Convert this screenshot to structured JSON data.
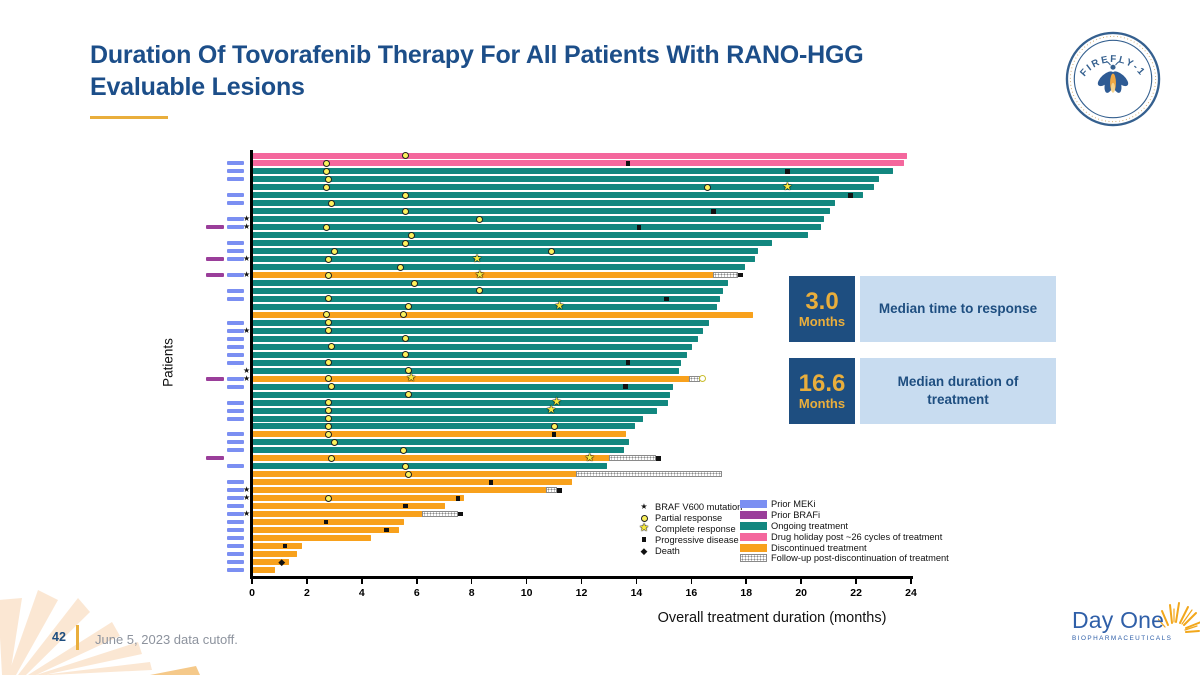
{
  "slide": {
    "title": "Duration Of Tovorafenib Therapy For All Patients With RANO-HGG Evaluable Lesions",
    "page_number": "42",
    "footnote": "June 5, 2023 data cutoff."
  },
  "logos": {
    "firefly": "FIREFLY-1",
    "dayone": "Day One",
    "dayone_sub": "BIOPHARMACEUTICALS"
  },
  "stats": [
    {
      "value": "3.0",
      "unit": "Months",
      "label": "Median time to response"
    },
    {
      "value": "16.6",
      "unit": "Months",
      "label": "Median duration of treatment"
    }
  ],
  "chart_data": {
    "type": "bar",
    "subtype": "swimmer-plot",
    "xlabel": "Overall treatment duration (months)",
    "ylabel": "Patients",
    "xlim": [
      0,
      24
    ],
    "xticks": [
      0,
      2,
      4,
      6,
      8,
      10,
      12,
      14,
      16,
      18,
      20,
      22,
      24
    ],
    "colors": {
      "teal": "#12877F",
      "pink": "#F4679D",
      "orange": "#F8A11C",
      "mek": "#7B8FF2",
      "braf": "#9A3E9A"
    },
    "legend_symbols": [
      {
        "icon": "braf-star",
        "label": "BRAF V600 mutation"
      },
      {
        "icon": "pr",
        "label": "Partial response"
      },
      {
        "icon": "cr",
        "label": "Complete response"
      },
      {
        "icon": "pd",
        "label": "Progressive disease"
      },
      {
        "icon": "death",
        "label": "Death"
      }
    ],
    "legend_bars": [
      {
        "key": "mek",
        "label": "Prior MEKi"
      },
      {
        "key": "braf",
        "label": "Prior BRAFi"
      },
      {
        "key": "teal",
        "label": "Ongoing treatment"
      },
      {
        "key": "pink",
        "label": "Drug holiday post ~26 cycles of treatment"
      },
      {
        "key": "orange",
        "label": "Discontinued treatment"
      },
      {
        "key": "hatch",
        "label": "Follow-up post-discontinuation of treatment"
      }
    ],
    "rows": [
      {
        "len": 23.8,
        "color": "pink",
        "markers": [
          [
            "pr",
            5.6
          ]
        ],
        "pre": []
      },
      {
        "len": 23.7,
        "color": "pink",
        "markers": [
          [
            "pr",
            2.7
          ],
          [
            "pd",
            13.7
          ]
        ],
        "pre": [
          "mek"
        ]
      },
      {
        "len": 23.3,
        "color": "teal",
        "markers": [
          [
            "pr",
            2.7
          ],
          [
            "pd",
            19.5
          ]
        ],
        "pre": [
          "mek"
        ]
      },
      {
        "len": 22.8,
        "color": "teal",
        "markers": [
          [
            "pr",
            2.8
          ]
        ],
        "pre": [
          "mek"
        ]
      },
      {
        "len": 22.6,
        "color": "teal",
        "markers": [
          [
            "pr",
            2.7
          ],
          [
            "pr",
            16.6
          ],
          [
            "cr",
            19.5
          ]
        ],
        "pre": []
      },
      {
        "len": 22.2,
        "color": "teal",
        "markers": [
          [
            "pr",
            5.6
          ],
          [
            "pd",
            21.8
          ]
        ],
        "pre": [
          "mek"
        ]
      },
      {
        "len": 21.2,
        "color": "teal",
        "markers": [
          [
            "pr",
            2.9
          ]
        ],
        "pre": [
          "mek"
        ]
      },
      {
        "len": 21.0,
        "color": "teal",
        "markers": [
          [
            "pr",
            5.6
          ],
          [
            "pd",
            16.8
          ]
        ],
        "pre": []
      },
      {
        "len": 20.8,
        "color": "teal",
        "markers": [
          [
            "pr",
            8.3
          ]
        ],
        "pre": [
          "mek",
          "star"
        ]
      },
      {
        "len": 20.7,
        "color": "teal",
        "markers": [
          [
            "pr",
            2.7
          ],
          [
            "pd",
            14.1
          ]
        ],
        "pre": [
          "braf",
          "mek",
          "star"
        ]
      },
      {
        "len": 20.2,
        "color": "teal",
        "markers": [
          [
            "pr",
            5.8
          ]
        ],
        "pre": []
      },
      {
        "len": 18.9,
        "color": "teal",
        "markers": [
          [
            "pr",
            5.6
          ]
        ],
        "pre": [
          "mek"
        ]
      },
      {
        "len": 18.4,
        "color": "teal",
        "markers": [
          [
            "pr",
            3.0
          ],
          [
            "pr",
            10.9
          ]
        ],
        "pre": [
          "mek"
        ]
      },
      {
        "len": 18.3,
        "color": "teal",
        "markers": [
          [
            "pr",
            2.8
          ],
          [
            "cr",
            8.2
          ]
        ],
        "pre": [
          "braf",
          "mek",
          "star"
        ]
      },
      {
        "len": 17.9,
        "color": "teal",
        "markers": [
          [
            "pr",
            5.4
          ]
        ],
        "pre": []
      },
      {
        "len": 16.8,
        "color": "orange",
        "hatch_to": 17.7,
        "markers": [
          [
            "pr",
            2.8
          ],
          [
            "cr",
            8.3
          ],
          [
            "pd",
            17.8
          ]
        ],
        "pre": [
          "braf",
          "mek",
          "star"
        ]
      },
      {
        "len": 17.3,
        "color": "teal",
        "markers": [
          [
            "pr",
            5.9
          ]
        ],
        "pre": []
      },
      {
        "len": 17.1,
        "color": "teal",
        "markers": [
          [
            "pr",
            8.3
          ]
        ],
        "pre": [
          "mek"
        ]
      },
      {
        "len": 17.0,
        "color": "teal",
        "markers": [
          [
            "pr",
            2.8
          ],
          [
            "pd",
            15.1
          ]
        ],
        "pre": [
          "mek"
        ]
      },
      {
        "len": 16.9,
        "color": "teal",
        "markers": [
          [
            "pr",
            5.7
          ],
          [
            "cr",
            11.2
          ]
        ],
        "pre": []
      },
      {
        "len": 18.2,
        "color": "orange",
        "markers": [
          [
            "pr",
            2.7
          ],
          [
            "pr",
            5.5
          ]
        ],
        "pre": []
      },
      {
        "len": 16.6,
        "color": "teal",
        "markers": [
          [
            "pr",
            2.8
          ]
        ],
        "pre": [
          "mek"
        ]
      },
      {
        "len": 16.4,
        "color": "teal",
        "markers": [
          [
            "pr",
            2.8
          ]
        ],
        "pre": [
          "mek",
          "star"
        ]
      },
      {
        "len": 16.2,
        "color": "teal",
        "markers": [
          [
            "pr",
            5.6
          ]
        ],
        "pre": [
          "mek"
        ]
      },
      {
        "len": 16.0,
        "color": "teal",
        "markers": [
          [
            "pr",
            2.9
          ]
        ],
        "pre": [
          "mek"
        ]
      },
      {
        "len": 15.8,
        "color": "teal",
        "markers": [
          [
            "pr",
            5.6
          ]
        ],
        "pre": [
          "mek"
        ]
      },
      {
        "len": 15.6,
        "color": "teal",
        "markers": [
          [
            "pr",
            2.8
          ],
          [
            "pd",
            13.7
          ]
        ],
        "pre": [
          "mek"
        ]
      },
      {
        "len": 15.5,
        "color": "teal",
        "markers": [
          [
            "pr",
            5.7
          ]
        ],
        "pre": [
          "star"
        ]
      },
      {
        "len": 15.9,
        "color": "orange",
        "hatch_to": 16.3,
        "markers": [
          [
            "pr",
            2.8
          ],
          [
            "cr",
            5.8
          ],
          [
            "openpr",
            16.4
          ]
        ],
        "pre": [
          "braf",
          "mek",
          "star"
        ]
      },
      {
        "len": 15.3,
        "color": "teal",
        "markers": [
          [
            "pr",
            2.9
          ],
          [
            "pd",
            13.6
          ]
        ],
        "pre": [
          "mek"
        ]
      },
      {
        "len": 15.2,
        "color": "teal",
        "markers": [
          [
            "pr",
            5.7
          ]
        ],
        "pre": []
      },
      {
        "len": 15.1,
        "color": "teal",
        "markers": [
          [
            "pr",
            2.8
          ],
          [
            "cr",
            11.1
          ]
        ],
        "pre": [
          "mek"
        ]
      },
      {
        "len": 14.7,
        "color": "teal",
        "markers": [
          [
            "pr",
            2.8
          ],
          [
            "cr",
            10.9
          ]
        ],
        "pre": [
          "mek"
        ]
      },
      {
        "len": 14.2,
        "color": "teal",
        "markers": [
          [
            "pr",
            2.8
          ]
        ],
        "pre": [
          "mek"
        ]
      },
      {
        "len": 13.9,
        "color": "teal",
        "markers": [
          [
            "pr",
            2.8
          ],
          [
            "pr",
            11.0
          ]
        ],
        "pre": []
      },
      {
        "len": 13.6,
        "color": "orange",
        "markers": [
          [
            "pr",
            2.8
          ],
          [
            "pd",
            11.0
          ]
        ],
        "pre": [
          "mek"
        ]
      },
      {
        "len": 13.7,
        "color": "teal",
        "markers": [
          [
            "pr",
            3.0
          ]
        ],
        "pre": [
          "mek"
        ]
      },
      {
        "len": 13.5,
        "color": "teal",
        "markers": [
          [
            "pr",
            5.5
          ]
        ],
        "pre": [
          "mek"
        ]
      },
      {
        "len": 13.0,
        "color": "orange",
        "hatch_to": 14.7,
        "markers": [
          [
            "pr",
            2.9
          ],
          [
            "cr",
            12.3
          ],
          [
            "pd",
            14.8
          ]
        ],
        "pre": [
          "braf"
        ]
      },
      {
        "len": 12.9,
        "color": "teal",
        "markers": [
          [
            "pr",
            5.6
          ]
        ],
        "pre": [
          "mek"
        ]
      },
      {
        "len": 11.8,
        "color": "orange",
        "hatch_to": 17.1,
        "markers": [
          [
            "pr",
            5.7
          ]
        ],
        "pre": []
      },
      {
        "len": 11.6,
        "color": "orange",
        "markers": [
          [
            "pd",
            8.7
          ]
        ],
        "pre": [
          "mek"
        ]
      },
      {
        "len": 10.7,
        "color": "orange",
        "hatch_to": 11.1,
        "markers": [
          [
            "pd",
            11.2
          ]
        ],
        "pre": [
          "mek",
          "star"
        ]
      },
      {
        "len": 7.7,
        "color": "orange",
        "markers": [
          [
            "pr",
            2.8
          ],
          [
            "pd",
            7.5
          ]
        ],
        "pre": [
          "mek",
          "star"
        ]
      },
      {
        "len": 7.0,
        "color": "orange",
        "markers": [
          [
            "pd",
            5.6
          ]
        ],
        "pre": [
          "mek"
        ]
      },
      {
        "len": 6.2,
        "color": "orange",
        "hatch_to": 7.5,
        "markers": [
          [
            "pd",
            7.6
          ]
        ],
        "pre": [
          "mek",
          "star"
        ]
      },
      {
        "len": 5.5,
        "color": "orange",
        "markers": [
          [
            "pd",
            2.7
          ]
        ],
        "pre": [
          "mek"
        ]
      },
      {
        "len": 5.3,
        "color": "orange",
        "markers": [
          [
            "pd",
            4.9
          ]
        ],
        "pre": [
          "mek"
        ]
      },
      {
        "len": 4.3,
        "color": "orange",
        "markers": [],
        "pre": [
          "mek"
        ]
      },
      {
        "len": 1.8,
        "color": "orange",
        "markers": [
          [
            "pd",
            1.2
          ]
        ],
        "pre": [
          "mek"
        ]
      },
      {
        "len": 1.6,
        "color": "orange",
        "markers": [],
        "pre": [
          "mek"
        ]
      },
      {
        "len": 1.3,
        "color": "orange",
        "markers": [
          [
            "death",
            1.1
          ]
        ],
        "pre": [
          "mek"
        ]
      },
      {
        "len": 0.8,
        "color": "orange",
        "markers": [],
        "pre": [
          "mek"
        ]
      }
    ]
  }
}
